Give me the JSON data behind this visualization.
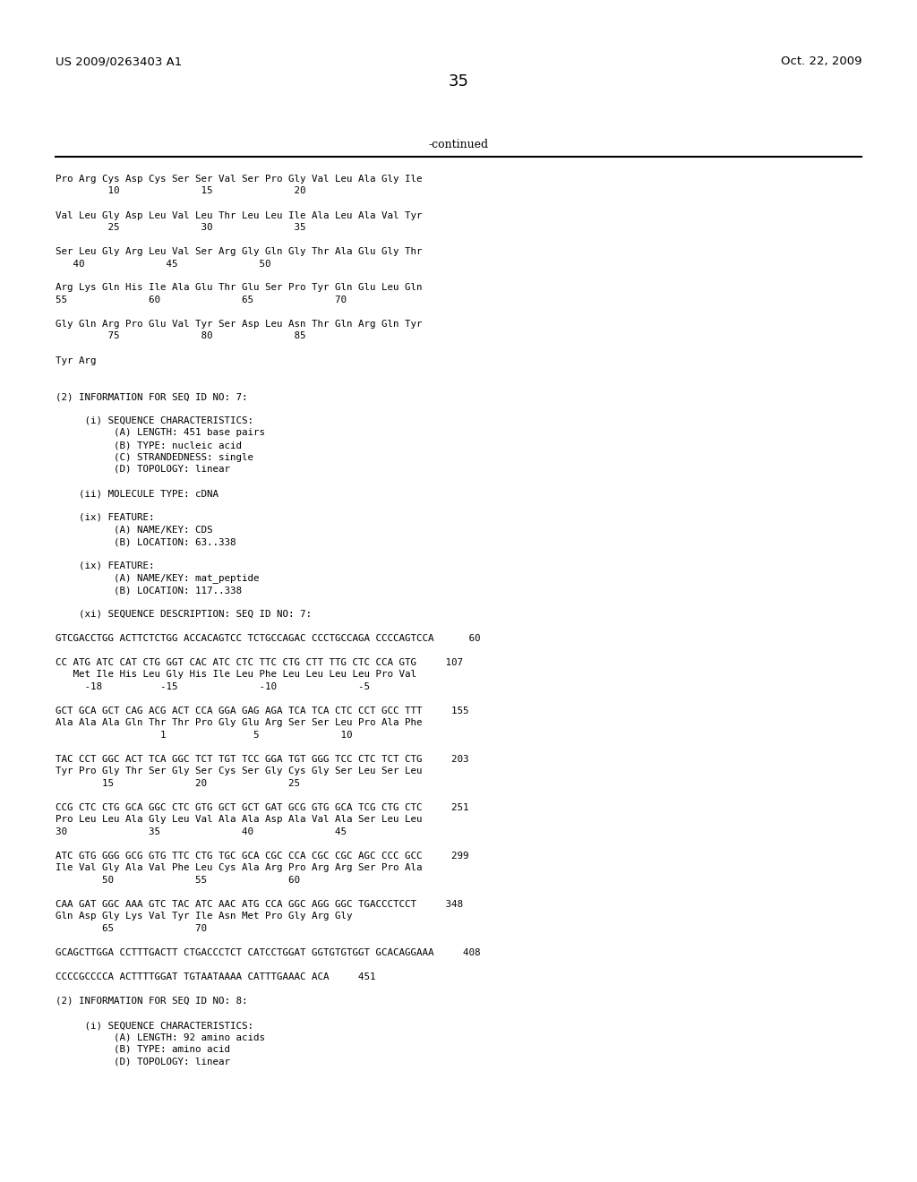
{
  "header_left": "US 2009/0263403 A1",
  "header_right": "Oct. 22, 2009",
  "page_number": "35",
  "continued_text": "-continued",
  "background_color": "#ffffff",
  "text_color": "#000000",
  "lines": [
    "Pro Arg Cys Asp Cys Ser Ser Val Ser Pro Gly Val Leu Ala Gly Ile",
    "         10              15              20",
    "",
    "Val Leu Gly Asp Leu Val Leu Thr Leu Leu Ile Ala Leu Ala Val Tyr",
    "         25              30              35",
    "",
    "Ser Leu Gly Arg Leu Val Ser Arg Gly Gln Gly Thr Ala Glu Gly Thr",
    "   40              45              50",
    "",
    "Arg Lys Gln His Ile Ala Glu Thr Glu Ser Pro Tyr Gln Glu Leu Gln",
    "55              60              65              70",
    "",
    "Gly Gln Arg Pro Glu Val Tyr Ser Asp Leu Asn Thr Gln Arg Gln Tyr",
    "         75              80              85",
    "",
    "Tyr Arg",
    "",
    "",
    "(2) INFORMATION FOR SEQ ID NO: 7:",
    "",
    "     (i) SEQUENCE CHARACTERISTICS:",
    "          (A) LENGTH: 451 base pairs",
    "          (B) TYPE: nucleic acid",
    "          (C) STRANDEDNESS: single",
    "          (D) TOPOLOGY: linear",
    "",
    "    (ii) MOLECULE TYPE: cDNA",
    "",
    "    (ix) FEATURE:",
    "          (A) NAME/KEY: CDS",
    "          (B) LOCATION: 63..338",
    "",
    "    (ix) FEATURE:",
    "          (A) NAME/KEY: mat_peptide",
    "          (B) LOCATION: 117..338",
    "",
    "    (xi) SEQUENCE DESCRIPTION: SEQ ID NO: 7:",
    "",
    "GTCGACCTGG ACTTCTCTGG ACCACAGTCC TCTGCCAGAC CCCTGCCAGA CCCCAGTCCA      60",
    "",
    "CC ATG ATC CAT CTG GGT CAC ATC CTC TTC CTG CTT TTG CTC CCA GTG     107",
    "   Met Ile His Leu Gly His Ile Leu Phe Leu Leu Leu Leu Pro Val",
    "     -18          -15              -10              -5",
    "",
    "GCT GCA GCT CAG ACG ACT CCA GGA GAG AGA TCA TCA CTC CCT GCC TTT     155",
    "Ala Ala Ala Gln Thr Thr Pro Gly Glu Arg Ser Ser Leu Pro Ala Phe",
    "                  1               5              10",
    "",
    "TAC CCT GGC ACT TCA GGC TCT TGT TCC GGA TGT GGG TCC CTC TCT CTG     203",
    "Tyr Pro Gly Thr Ser Gly Ser Cys Ser Gly Cys Gly Ser Leu Ser Leu",
    "        15              20              25",
    "",
    "CCG CTC CTG GCA GGC CTC GTG GCT GCT GAT GCG GTG GCA TCG CTG CTC     251",
    "Pro Leu Leu Ala Gly Leu Val Ala Ala Asp Ala Val Ala Ser Leu Leu",
    "30              35              40              45",
    "",
    "ATC GTG GGG GCG GTG TTC CTG TGC GCA CGC CCA CGC CGC AGC CCC GCC     299",
    "Ile Val Gly Ala Val Phe Leu Cys Ala Arg Pro Arg Arg Ser Pro Ala",
    "        50              55              60",
    "",
    "CAA GAT GGC AAA GTC TAC ATC AAC ATG CCA GGC AGG GGC TGACCCTCCT     348",
    "Gln Asp Gly Lys Val Tyr Ile Asn Met Pro Gly Arg Gly",
    "        65              70",
    "",
    "GCAGCTTGGA CCTTTGACTT CTGACCCTCT CATCCTGGAT GGTGTGTGGT GCACAGGAAA     408",
    "",
    "CCCCGCCCCA ACTTTTGGAT TGTAATAAAA CATTTGAAAC ACA     451",
    "",
    "(2) INFORMATION FOR SEQ ID NO: 8:",
    "",
    "     (i) SEQUENCE CHARACTERISTICS:",
    "          (A) LENGTH: 92 amino acids",
    "          (B) TYPE: amino acid",
    "          (D) TOPOLOGY: linear"
  ]
}
